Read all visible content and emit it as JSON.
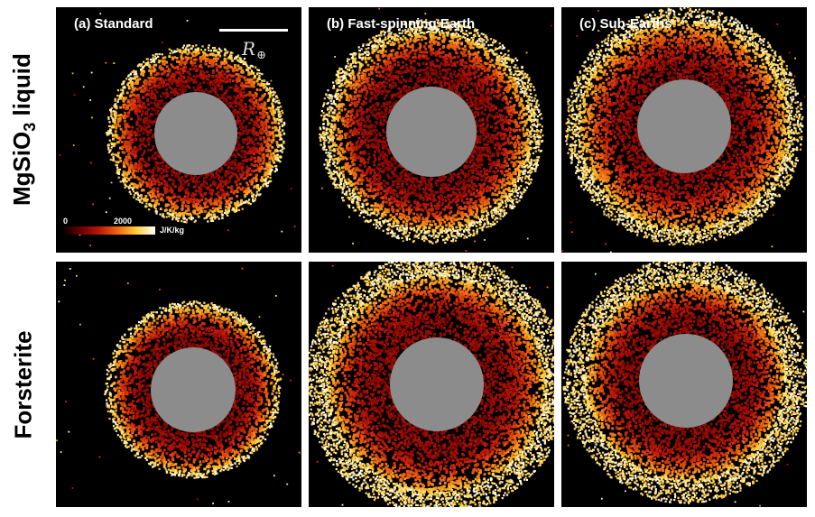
{
  "rows": [
    {
      "label": "MgSiO",
      "label_sub": "3",
      "label_tail": " liquid"
    },
    {
      "label": "Forsterite",
      "label_sub": "",
      "label_tail": ""
    }
  ],
  "columns": [
    {
      "title": "(a) Standard"
    },
    {
      "title": "(b) Fast-spinning Earth"
    },
    {
      "title": "(c) Sub-Earths"
    }
  ],
  "scale_bar": {
    "symbol": "R",
    "subscript": "⊕"
  },
  "colorbar": {
    "min": "0",
    "max": "2000",
    "unit": "J/K/kg"
  },
  "colors": {
    "panel_background": "#000000",
    "core": "#8c8c8c",
    "colormap": [
      "#050000",
      "#6e0000",
      "#c01808",
      "#f26a10",
      "#ffd23c",
      "#ffffff"
    ]
  }
}
